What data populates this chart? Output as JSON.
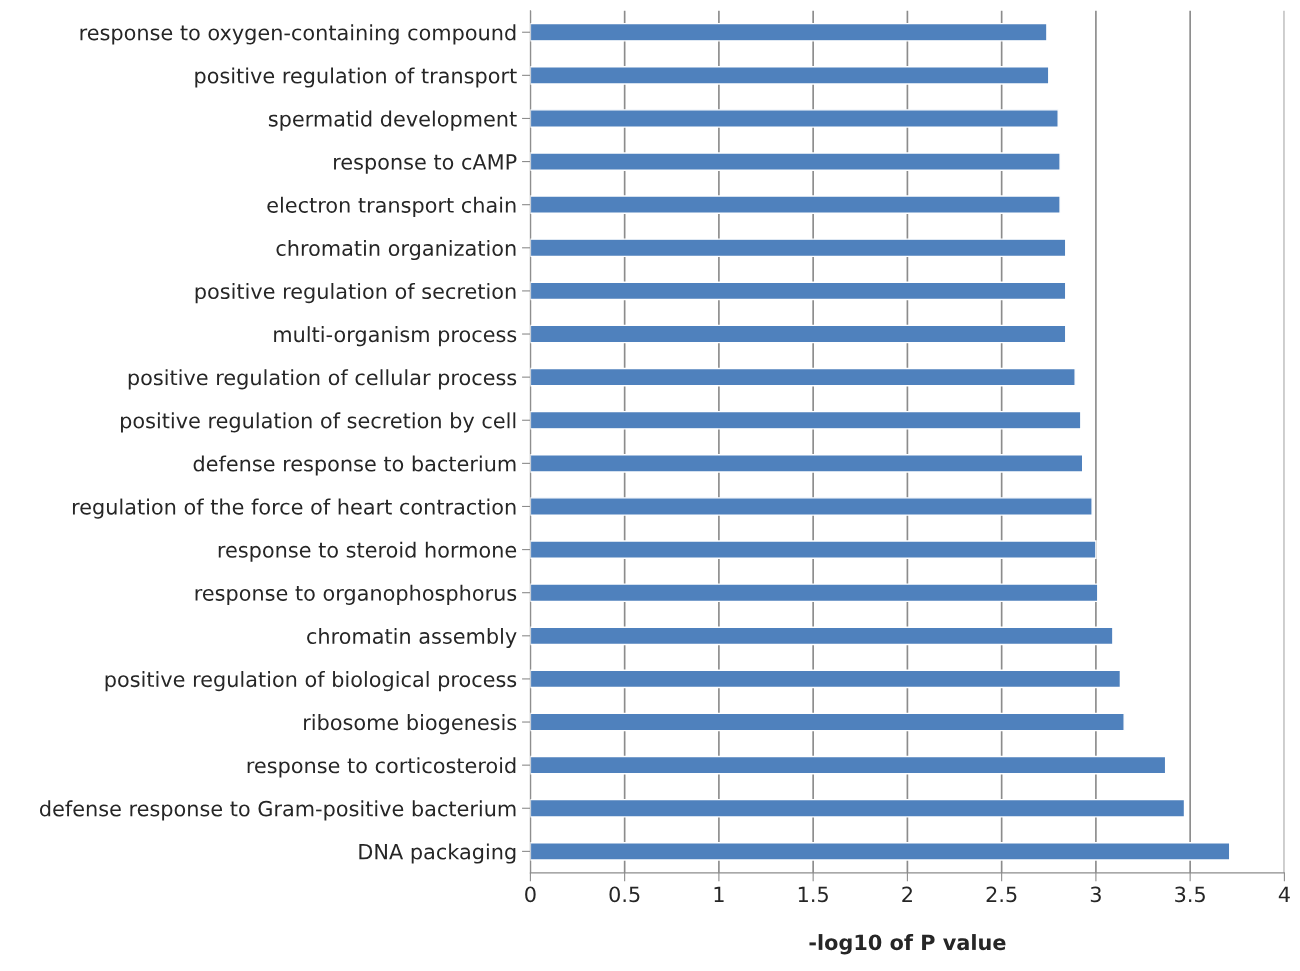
{
  "chart_data": {
    "type": "bar",
    "orientation": "horizontal",
    "xlabel": "-log10 of P value",
    "categories": [
      "response to oxygen-containing compound",
      "positive regulation of transport",
      "spermatid development",
      "response to cAMP",
      "electron transport chain",
      "chromatin organization",
      "positive regulation of secretion",
      "multi-organism process",
      "positive regulation of cellular process",
      "positive regulation of secretion by cell",
      "defense response to bacterium",
      "regulation of the force of heart contraction",
      "response to steroid hormone",
      "response to organophosphorus",
      "chromatin assembly",
      "positive regulation of biological process",
      "ribosome biogenesis",
      "response to corticosteroid",
      "defense response to Gram-positive bacterium",
      "DNA packaging"
    ],
    "values": [
      2.74,
      2.75,
      2.8,
      2.81,
      2.81,
      2.84,
      2.84,
      2.84,
      2.89,
      2.92,
      2.93,
      2.98,
      3.0,
      3.01,
      3.09,
      3.13,
      3.15,
      3.37,
      3.47,
      3.71
    ],
    "color": "#4f81bd",
    "xlim": [
      0,
      4
    ],
    "xticks": [
      0,
      0.5,
      1,
      1.5,
      2,
      2.5,
      3,
      3.5,
      4
    ],
    "grid": "x",
    "legend": false
  }
}
